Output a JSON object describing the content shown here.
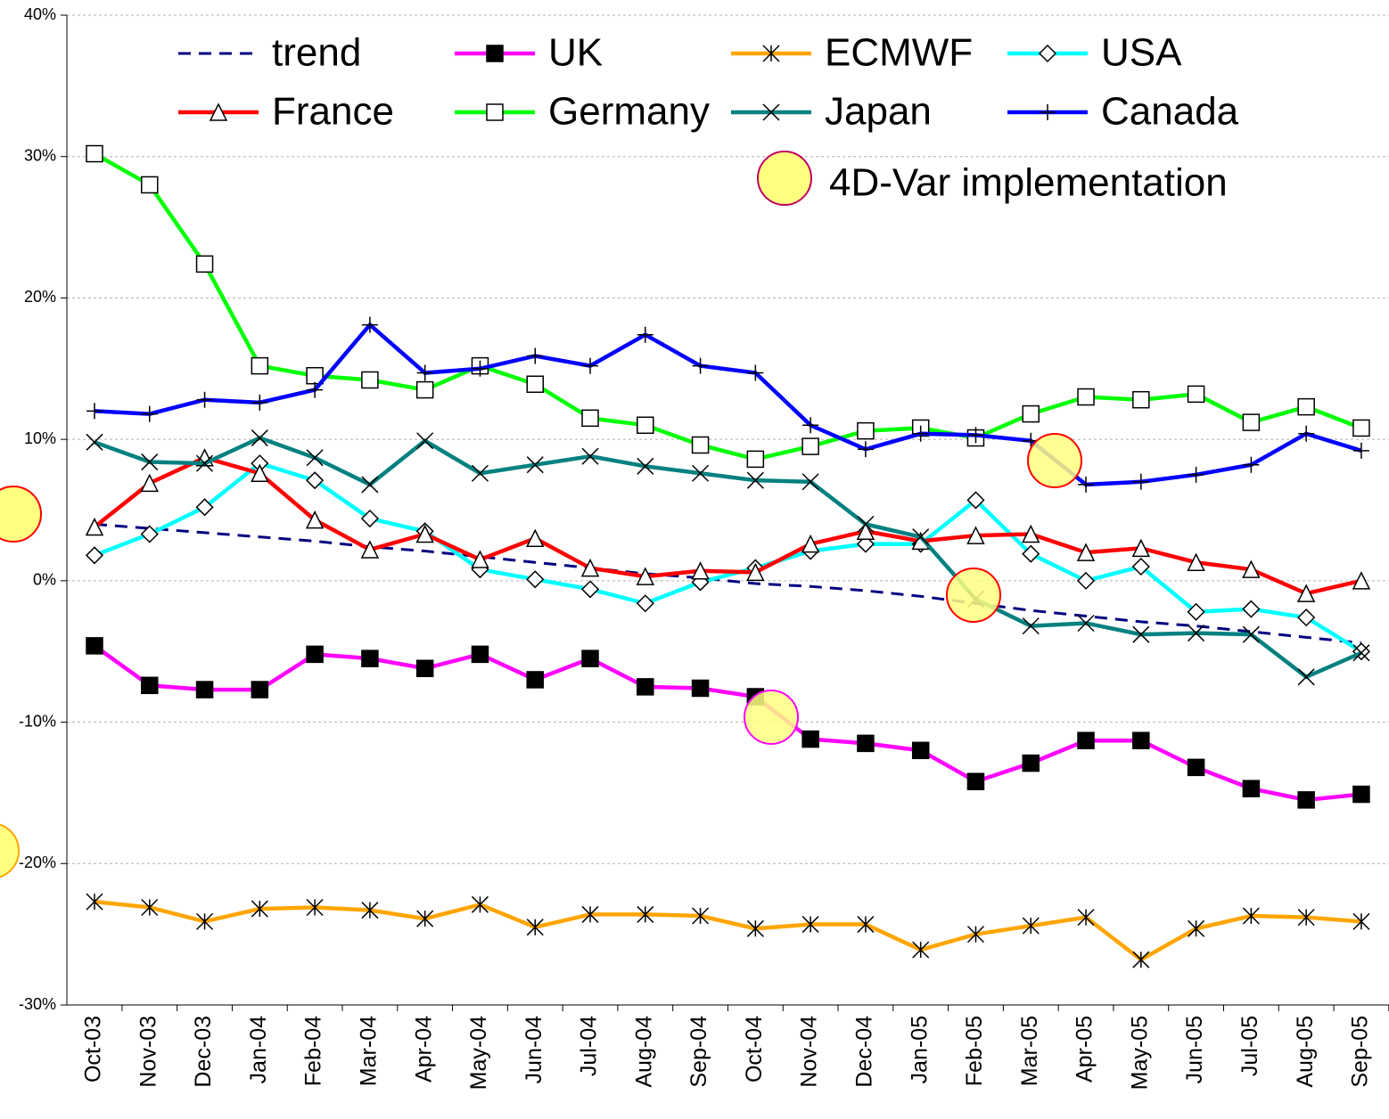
{
  "chart_data": {
    "type": "line",
    "categories": [
      "Oct-03",
      "Nov-03",
      "Dec-03",
      "Jan-04",
      "Feb-04",
      "Mar-04",
      "Apr-04",
      "May-04",
      "Jun-04",
      "Jul-04",
      "Aug-04",
      "Sep-04",
      "Oct-04",
      "Nov-04",
      "Dec-04",
      "Jan-05",
      "Feb-05",
      "Mar-05",
      "Apr-05",
      "May-05",
      "Jun-05",
      "Jul-05",
      "Aug-05",
      "Sep-05"
    ],
    "ylim": [
      -30,
      40
    ],
    "yticks": [
      {
        "value": -30,
        "label": "-30%"
      },
      {
        "value": -20,
        "label": "-20%"
      },
      {
        "value": -10,
        "label": "-10%"
      },
      {
        "value": 0,
        "label": "0%"
      },
      {
        "value": 10,
        "label": "10%"
      },
      {
        "value": 20,
        "label": "20%"
      },
      {
        "value": 30,
        "label": "30%"
      },
      {
        "value": 40,
        "label": "40%"
      }
    ],
    "grid": true,
    "annotation": "4D-Var implementation",
    "series": [
      {
        "name": "trend",
        "color": "#000080",
        "marker": "none",
        "dash": true,
        "values": [
          4.0,
          3.7,
          3.4,
          3.1,
          2.8,
          2.4,
          2.1,
          1.7,
          1.3,
          0.9,
          0.5,
          0.2,
          -0.2,
          -0.4,
          -0.7,
          -1.1,
          -1.6,
          -2.1,
          -2.5,
          -2.9,
          -3.2,
          -3.6,
          -4.0,
          -4.4
        ]
      },
      {
        "name": "UK",
        "color": "#ff00ff",
        "marker": "filled-square",
        "values": [
          -4.6,
          -7.4,
          -7.7,
          -7.7,
          -5.2,
          -5.5,
          -6.2,
          -5.2,
          -7.0,
          -5.5,
          -7.5,
          -7.6,
          -8.2,
          -11.2,
          -11.5,
          -12.0,
          -14.2,
          -12.9,
          -11.3,
          -11.3,
          -13.2,
          -14.7,
          -15.5,
          -15.1
        ]
      },
      {
        "name": "ECMWF",
        "color": "#ffa500",
        "marker": "asterisk",
        "values": [
          -22.7,
          -23.1,
          -24.1,
          -23.2,
          -23.1,
          -23.3,
          -23.9,
          -22.9,
          -24.5,
          -23.6,
          -23.6,
          -23.7,
          -24.6,
          -24.3,
          -24.3,
          -26.1,
          -25.0,
          -24.4,
          -23.8,
          -26.8,
          -24.6,
          -23.7,
          -23.8,
          -24.1
        ]
      },
      {
        "name": "USA",
        "color": "#00ffff",
        "marker": "diamond",
        "values": [
          1.8,
          3.3,
          5.2,
          8.3,
          7.1,
          4.4,
          3.5,
          0.8,
          0.1,
          -0.6,
          -1.6,
          -0.1,
          0.9,
          2.1,
          2.6,
          2.6,
          5.7,
          1.9,
          0.0,
          1.0,
          -2.2,
          -2.0,
          -2.6,
          -5.0
        ]
      },
      {
        "name": "France",
        "color": "#ff0000",
        "marker": "triangle",
        "values": [
          3.8,
          6.9,
          8.7,
          7.6,
          4.3,
          2.2,
          3.3,
          1.5,
          3.0,
          0.9,
          0.3,
          0.7,
          0.6,
          2.6,
          3.5,
          2.8,
          3.2,
          3.3,
          2.0,
          2.3,
          1.3,
          0.8,
          -0.9,
          0.0
        ]
      },
      {
        "name": "Germany",
        "color": "#00ff00",
        "marker": "square",
        "values": [
          30.2,
          28.0,
          22.4,
          15.2,
          14.5,
          14.2,
          13.5,
          15.2,
          13.9,
          11.5,
          11.0,
          9.6,
          8.6,
          9.5,
          10.6,
          10.8,
          10.1,
          11.8,
          13.0,
          12.8,
          13.2,
          11.2,
          12.3,
          10.8
        ]
      },
      {
        "name": "Japan",
        "color": "#008080",
        "marker": "x",
        "values": [
          9.8,
          8.4,
          8.3,
          10.1,
          8.7,
          6.8,
          9.9,
          7.6,
          8.2,
          8.8,
          8.1,
          7.6,
          7.1,
          7.0,
          4.0,
          3.1,
          -1.3,
          -3.2,
          -3.0,
          -3.8,
          -3.7,
          -3.8,
          -6.8,
          -5.1
        ]
      },
      {
        "name": "Canada",
        "color": "#0000ff",
        "marker": "plus",
        "values": [
          12.0,
          11.8,
          12.8,
          12.6,
          13.5,
          18.1,
          14.7,
          15.0,
          15.9,
          15.2,
          17.4,
          15.2,
          14.7,
          11.0,
          9.3,
          10.4,
          10.3,
          9.9,
          6.8,
          7.0,
          7.5,
          8.2,
          10.4,
          9.2
        ]
      }
    ]
  }
}
